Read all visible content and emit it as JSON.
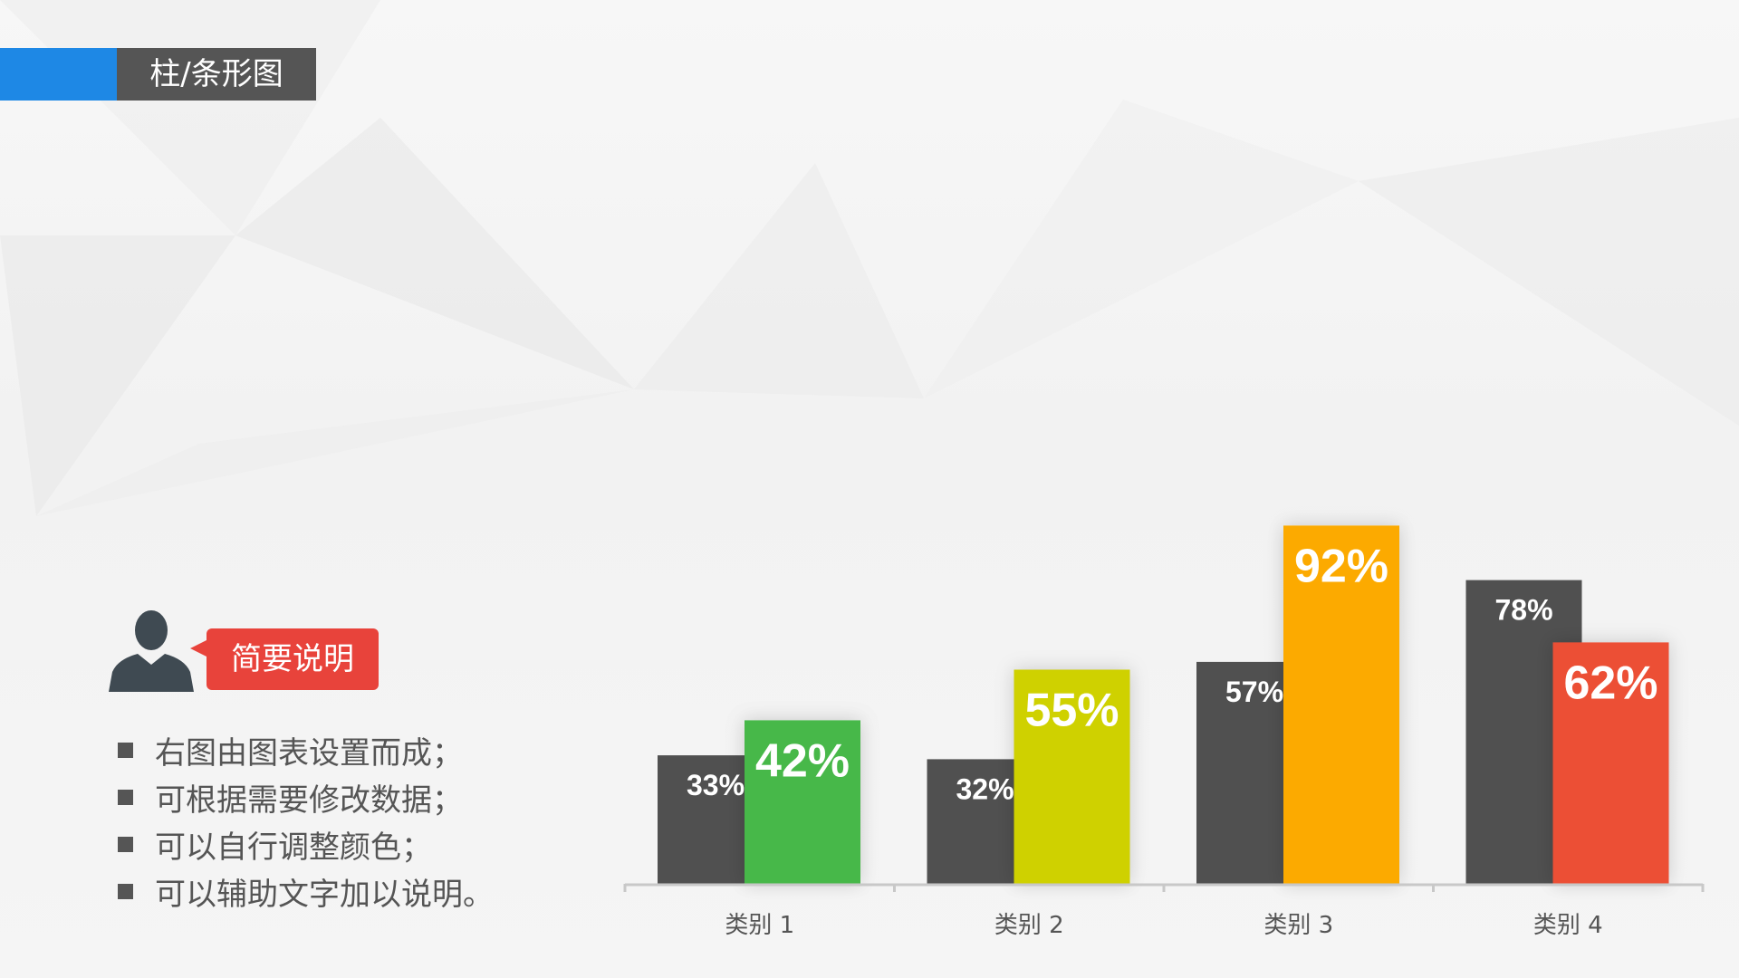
{
  "header": {
    "title": "柱/条形图"
  },
  "callout": {
    "label": "简要说明"
  },
  "bullets": [
    "右图由图表设置而成；",
    "可根据需要修改数据；",
    "可以自行调整颜色；",
    "可以辅助文字加以说明。"
  ],
  "colors": {
    "accent": "#1e88e5",
    "dark": "#505050",
    "callout": "#e8433b"
  },
  "chart_data": {
    "type": "bar",
    "categories": [
      "类别 1",
      "类别 2",
      "类别 3",
      "类别 4"
    ],
    "series": [
      {
        "values": [
          33,
          32,
          57,
          78
        ],
        "labels": [
          "33%",
          "32%",
          "57%",
          "78%"
        ],
        "color": "#505050"
      },
      {
        "values": [
          42,
          55,
          92,
          62
        ],
        "labels": [
          "42%",
          "55%",
          "92%",
          "62%"
        ],
        "colors": [
          "#47b84a",
          "#cfd100",
          "#fcaa00",
          "#ec5035"
        ]
      }
    ],
    "ylim": [
      0,
      100
    ],
    "grid": false,
    "legend": "none",
    "title": "",
    "xlabel": "",
    "ylabel": ""
  }
}
